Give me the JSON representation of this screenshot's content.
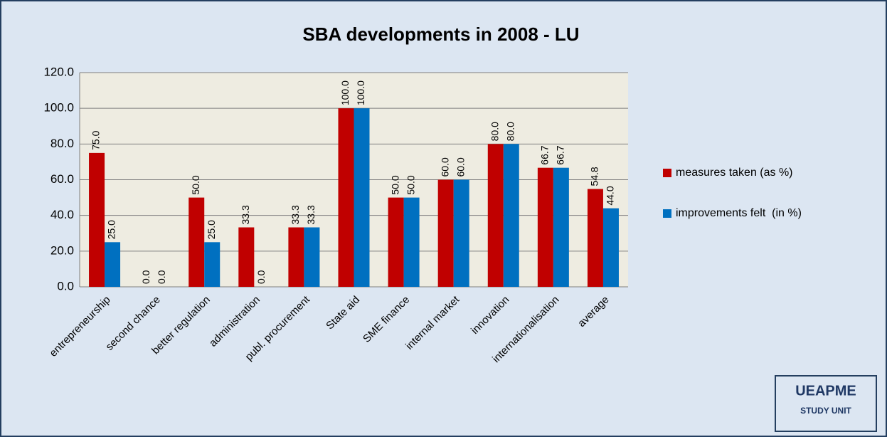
{
  "chart_data": {
    "type": "bar",
    "title": "SBA developments in 2008 - LU",
    "categories": [
      "entrepreneurship",
      "second chance",
      "better regulation",
      "administration",
      "publ. procurement",
      "State aid",
      "SME finance",
      "internal market",
      "innovation",
      "internationalisation",
      "average"
    ],
    "series": [
      {
        "name": "measures taken (as %)",
        "color": "#c00000",
        "values": [
          75,
          0,
          50,
          33.3,
          33.3,
          100,
          50,
          60,
          80,
          66.7,
          54.8
        ],
        "value_labels": [
          "75.0",
          "0.0",
          "50.0",
          "33.3",
          "33.3",
          "100.0",
          "50.0",
          "60.0",
          "80.0",
          "66.7",
          "54.8"
        ]
      },
      {
        "name": "improvements felt  (in %)",
        "color": "#0070c0",
        "values": [
          25,
          0,
          25,
          0,
          33.3,
          100,
          50,
          60,
          80,
          66.7,
          44.0
        ],
        "value_labels": [
          "25.0",
          "0.0",
          "25.0",
          "0.0",
          "33.3",
          "100.0",
          "50.0",
          "60.0",
          "80.0",
          "66.7",
          "44.0"
        ]
      }
    ],
    "ylim": [
      0,
      120
    ],
    "yticks": [
      {
        "value": 0,
        "label": "0.0"
      },
      {
        "value": 20,
        "label": "20.0"
      },
      {
        "value": 40,
        "label": "40.0"
      },
      {
        "value": 60,
        "label": "60.0"
      },
      {
        "value": 80,
        "label": "80.0"
      },
      {
        "value": 100,
        "label": "100.0"
      },
      {
        "value": 120,
        "label": "120.0"
      }
    ],
    "grid": true,
    "legend": "right"
  },
  "logo": {
    "name": "UEAPME",
    "subtitle": "STUDY UNIT"
  }
}
